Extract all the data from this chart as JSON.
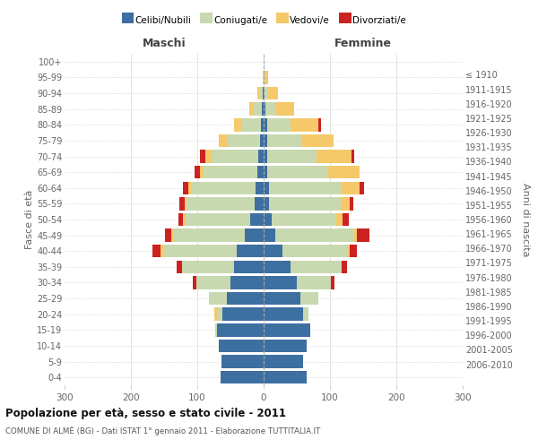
{
  "age_groups_bottom_to_top": [
    "0-4",
    "5-9",
    "10-14",
    "15-19",
    "20-24",
    "25-29",
    "30-34",
    "35-39",
    "40-44",
    "45-49",
    "50-54",
    "55-59",
    "60-64",
    "65-69",
    "70-74",
    "75-79",
    "80-84",
    "85-89",
    "90-94",
    "95-99",
    "100+"
  ],
  "birth_years_bottom_to_top": [
    "2006-2010",
    "2001-2005",
    "1996-2000",
    "1991-1995",
    "1986-1990",
    "1981-1985",
    "1976-1980",
    "1971-1975",
    "1966-1970",
    "1961-1965",
    "1956-1960",
    "1951-1955",
    "1946-1950",
    "1941-1945",
    "1936-1940",
    "1931-1935",
    "1926-1930",
    "1921-1925",
    "1916-1920",
    "1911-1915",
    "≤ 1910"
  ],
  "males_celibi": [
    65,
    63,
    68,
    70,
    62,
    55,
    50,
    45,
    40,
    28,
    20,
    14,
    12,
    10,
    8,
    6,
    4,
    3,
    2,
    0,
    0
  ],
  "males_coniugati": [
    0,
    0,
    0,
    3,
    8,
    28,
    52,
    78,
    112,
    108,
    98,
    102,
    98,
    80,
    70,
    48,
    28,
    12,
    5,
    1,
    0
  ],
  "males_vedovi": [
    0,
    0,
    0,
    0,
    4,
    0,
    0,
    0,
    3,
    3,
    3,
    3,
    3,
    6,
    10,
    14,
    12,
    6,
    3,
    0,
    0
  ],
  "males_divorziati": [
    0,
    0,
    0,
    0,
    0,
    0,
    5,
    8,
    12,
    10,
    8,
    8,
    8,
    8,
    8,
    0,
    0,
    0,
    0,
    0,
    0
  ],
  "females_nubili": [
    65,
    60,
    65,
    70,
    60,
    55,
    50,
    40,
    28,
    18,
    12,
    8,
    8,
    5,
    5,
    5,
    5,
    3,
    2,
    0,
    0
  ],
  "females_coniugate": [
    0,
    0,
    0,
    0,
    8,
    28,
    52,
    78,
    98,
    118,
    98,
    108,
    108,
    92,
    75,
    52,
    35,
    15,
    5,
    2,
    0
  ],
  "females_vedove": [
    0,
    0,
    0,
    0,
    0,
    0,
    0,
    0,
    4,
    5,
    9,
    14,
    28,
    48,
    52,
    48,
    42,
    28,
    14,
    5,
    0
  ],
  "females_divorziate": [
    0,
    0,
    0,
    0,
    0,
    0,
    5,
    8,
    10,
    18,
    10,
    5,
    8,
    0,
    5,
    0,
    4,
    0,
    0,
    0,
    0
  ],
  "colors": {
    "celibi": "#3d6fa0",
    "coniugati": "#c8d9b0",
    "vedovi": "#f5c96a",
    "divorziati": "#cc2222"
  },
  "xlim": 300,
  "title": "Popolazione per età, sesso e stato civile - 2011",
  "subtitle": "COMUNE DI ALMÈ (BG) - Dati ISTAT 1° gennaio 2011 - Elaborazione TUTTITALIA.IT",
  "ylabel_left": "Fasce di età",
  "ylabel_right": "Anni di nascita",
  "xlabel_left": "Maschi",
  "xlabel_right": "Femmine",
  "legend_labels": [
    "Celibi/Nubili",
    "Coniugati/e",
    "Vedovi/e",
    "Divorziati/e"
  ]
}
